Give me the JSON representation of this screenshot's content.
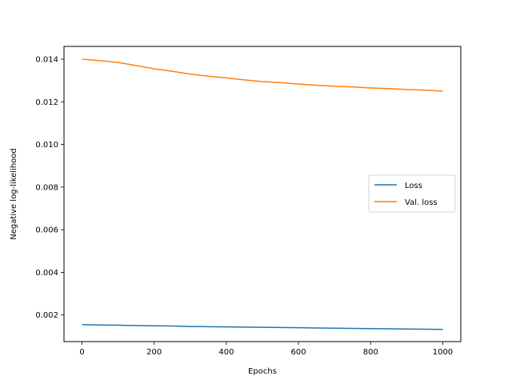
{
  "chart_data": {
    "type": "line",
    "title": "",
    "xlabel": "Epochs",
    "ylabel": "Negative log-likelihood",
    "xlim": [
      -50,
      1050
    ],
    "ylim": [
      0.00075,
      0.0146
    ],
    "xticks": [
      0,
      200,
      400,
      600,
      800,
      1000
    ],
    "xtick_labels": [
      "0",
      "200",
      "400",
      "600",
      "800",
      "1000"
    ],
    "yticks": [
      0.002,
      0.004,
      0.006,
      0.008,
      0.01,
      0.012,
      0.014
    ],
    "ytick_labels": [
      "0.002",
      "0.004",
      "0.006",
      "0.008",
      "0.010",
      "0.012",
      "0.014"
    ],
    "grid": false,
    "legend_position": "center-right",
    "series": [
      {
        "name": "Loss",
        "color": "#1f77b4",
        "x": [
          0,
          50,
          100,
          150,
          200,
          250,
          300,
          350,
          400,
          450,
          500,
          550,
          600,
          650,
          700,
          750,
          800,
          850,
          900,
          950,
          1000
        ],
        "y": [
          0.00155,
          0.00153,
          0.00152,
          0.0015,
          0.00149,
          0.00148,
          0.00146,
          0.00145,
          0.00144,
          0.00143,
          0.00142,
          0.00141,
          0.0014,
          0.00139,
          0.00138,
          0.00137,
          0.00136,
          0.00135,
          0.00134,
          0.00133,
          0.00132
        ]
      },
      {
        "name": "Val. loss",
        "color": "#ff7f0e",
        "x": [
          0,
          50,
          100,
          150,
          200,
          250,
          300,
          350,
          400,
          450,
          500,
          550,
          600,
          650,
          700,
          750,
          800,
          850,
          900,
          950,
          1000
        ],
        "y": [
          0.014,
          0.01393,
          0.01385,
          0.0137,
          0.01355,
          0.01343,
          0.0133,
          0.0132,
          0.01312,
          0.01303,
          0.01295,
          0.0129,
          0.01283,
          0.01278,
          0.01273,
          0.0127,
          0.01265,
          0.01262,
          0.01258,
          0.01255,
          0.0125
        ]
      }
    ]
  }
}
